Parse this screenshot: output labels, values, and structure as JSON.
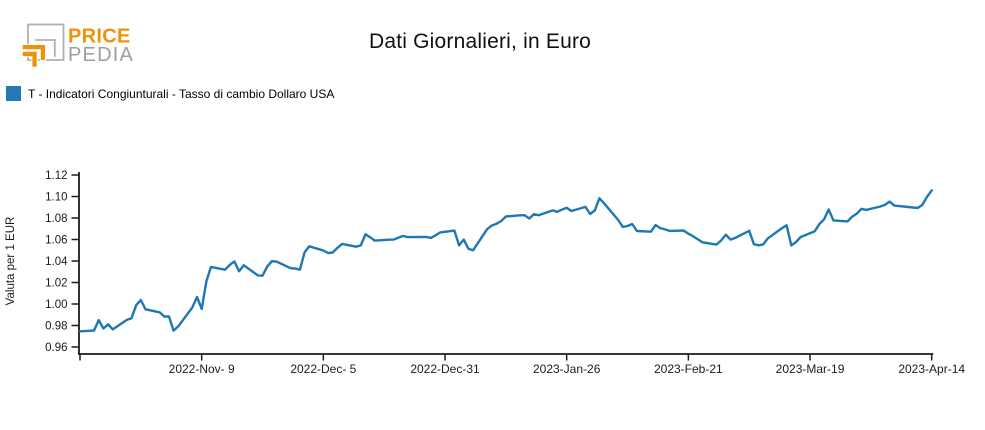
{
  "logo": {
    "brand_top": "PRICE",
    "brand_bottom": "PEDIA"
  },
  "header": {
    "title": "Dati Giornalieri, in Euro"
  },
  "legend": {
    "label": "T - Indicatori Congiunturali - Tasso di cambio Dollaro USA"
  },
  "colors": {
    "line": "#1F77B4",
    "legend_swatch": "#2379B5",
    "axis": "#1C1C1C",
    "tick_text": "#1C1C1C",
    "title_text": "#111111",
    "logo_orange": "#EE9209",
    "logo_text_gray": "#9E9E9E",
    "logo_mark_gray": "#B0B0B0"
  },
  "chart_data": {
    "type": "line",
    "title": "Dati Giornalieri, in Euro",
    "xlabel": "",
    "ylabel": "Valuta per 1 EUR",
    "ylim": [
      0.96,
      1.12
    ],
    "grid": false,
    "legend_position": "top-left-above-plot",
    "x_range": [
      "2022-10-14",
      "2023-04-14"
    ],
    "yticks": [
      0.96,
      0.98,
      1.0,
      1.02,
      1.04,
      1.06,
      1.08,
      1.1,
      1.12
    ],
    "ytick_labels": [
      "0.96",
      "0.98",
      "1.00",
      "1.02",
      "1.04",
      "1.06",
      "1.08",
      "1.10",
      "1.12"
    ],
    "xticks": [
      {
        "date": "2022-10-14",
        "label": ""
      },
      {
        "date": "2022-11-09",
        "label": "2022-Nov- 9"
      },
      {
        "date": "2022-12-05",
        "label": "2022-Dec- 5"
      },
      {
        "date": "2022-12-31",
        "label": "2022-Dec-31"
      },
      {
        "date": "2023-01-26",
        "label": "2023-Jan-26"
      },
      {
        "date": "2023-02-21",
        "label": "2023-Feb-21"
      },
      {
        "date": "2023-03-19",
        "label": "2023-Mar-19"
      },
      {
        "date": "2023-04-14",
        "label": "2023-Apr-14"
      }
    ],
    "series": [
      {
        "name": "T - Indicatori Congiunturali - Tasso di cambio Dollaro USA",
        "dates": [
          "2022-10-14",
          "2022-10-17",
          "2022-10-18",
          "2022-10-19",
          "2022-10-20",
          "2022-10-21",
          "2022-10-24",
          "2022-10-25",
          "2022-10-26",
          "2022-10-27",
          "2022-10-28",
          "2022-10-31",
          "2022-11-01",
          "2022-11-02",
          "2022-11-03",
          "2022-11-04",
          "2022-11-07",
          "2022-11-08",
          "2022-11-09",
          "2022-11-10",
          "2022-11-11",
          "2022-11-14",
          "2022-11-15",
          "2022-11-16",
          "2022-11-17",
          "2022-11-18",
          "2022-11-21",
          "2022-11-22",
          "2022-11-23",
          "2022-11-24",
          "2022-11-25",
          "2022-11-28",
          "2022-11-29",
          "2022-11-30",
          "2022-12-01",
          "2022-12-02",
          "2022-12-05",
          "2022-12-06",
          "2022-12-07",
          "2022-12-08",
          "2022-12-09",
          "2022-12-12",
          "2022-12-13",
          "2022-12-14",
          "2022-12-15",
          "2022-12-16",
          "2022-12-19",
          "2022-12-20",
          "2022-12-21",
          "2022-12-22",
          "2022-12-23",
          "2022-12-27",
          "2022-12-28",
          "2022-12-29",
          "2022-12-30",
          "2023-01-02",
          "2023-01-03",
          "2023-01-04",
          "2023-01-05",
          "2023-01-06",
          "2023-01-09",
          "2023-01-10",
          "2023-01-11",
          "2023-01-12",
          "2023-01-13",
          "2023-01-16",
          "2023-01-17",
          "2023-01-18",
          "2023-01-19",
          "2023-01-20",
          "2023-01-23",
          "2023-01-24",
          "2023-01-25",
          "2023-01-26",
          "2023-01-27",
          "2023-01-30",
          "2023-01-31",
          "2023-02-01",
          "2023-02-02",
          "2023-02-03",
          "2023-02-06",
          "2023-02-07",
          "2023-02-08",
          "2023-02-09",
          "2023-02-10",
          "2023-02-13",
          "2023-02-14",
          "2023-02-15",
          "2023-02-16",
          "2023-02-17",
          "2023-02-20",
          "2023-02-21",
          "2023-02-22",
          "2023-02-23",
          "2023-02-24",
          "2023-02-27",
          "2023-02-28",
          "2023-03-01",
          "2023-03-02",
          "2023-03-03",
          "2023-03-06",
          "2023-03-07",
          "2023-03-08",
          "2023-03-09",
          "2023-03-10",
          "2023-03-13",
          "2023-03-14",
          "2023-03-15",
          "2023-03-16",
          "2023-03-17",
          "2023-03-20",
          "2023-03-21",
          "2023-03-22",
          "2023-03-23",
          "2023-03-24",
          "2023-03-27",
          "2023-03-28",
          "2023-03-29",
          "2023-03-30",
          "2023-03-31",
          "2023-04-03",
          "2023-04-04",
          "2023-04-05",
          "2023-04-06",
          "2023-04-11",
          "2023-04-12",
          "2023-04-13",
          "2023-04-14"
        ],
        "values": [
          0.9746,
          0.9753,
          0.985,
          0.9772,
          0.9811,
          0.9764,
          0.9852,
          0.9868,
          0.9989,
          1.0037,
          0.9951,
          0.9923,
          0.9884,
          0.9885,
          0.9753,
          0.9793,
          0.9967,
          1.0065,
          0.9954,
          1.0211,
          1.0345,
          1.0319,
          1.0364,
          1.0395,
          1.0305,
          1.036,
          1.0266,
          1.0263,
          1.0348,
          1.0398,
          1.0394,
          1.0333,
          1.033,
          1.0319,
          1.0481,
          1.0537,
          1.0498,
          1.0474,
          1.0479,
          1.0522,
          1.0559,
          1.0533,
          1.0545,
          1.0649,
          1.0621,
          1.059,
          1.0598,
          1.0599,
          1.0616,
          1.0633,
          1.0622,
          1.0624,
          1.0615,
          1.064,
          1.0666,
          1.0683,
          1.0545,
          1.0599,
          1.0514,
          1.05,
          1.0696,
          1.073,
          1.0747,
          1.0772,
          1.0814,
          1.0825,
          1.0826,
          1.0795,
          1.0835,
          1.0826,
          1.0871,
          1.0858,
          1.0878,
          1.0895,
          1.0865,
          1.0903,
          1.0837,
          1.0871,
          1.0983,
          1.0937,
          1.0781,
          1.0717,
          1.0726,
          1.0744,
          1.0679,
          1.0673,
          1.0734,
          1.0706,
          1.0694,
          1.068,
          1.0684,
          1.0654,
          1.0631,
          1.0603,
          1.0574,
          1.0553,
          1.0591,
          1.0645,
          1.0599,
          1.0615,
          1.0681,
          1.0556,
          1.0546,
          1.0554,
          1.0611,
          1.0706,
          1.0732,
          1.0545,
          1.0576,
          1.0623,
          1.0676,
          1.0744,
          1.0788,
          1.0879,
          1.0778,
          1.0768,
          1.0812,
          1.0841,
          1.0886,
          1.0875,
          1.0907,
          1.0922,
          1.0953,
          1.0915,
          1.0893,
          1.0922,
          1.0996,
          1.1057
        ]
      }
    ]
  }
}
